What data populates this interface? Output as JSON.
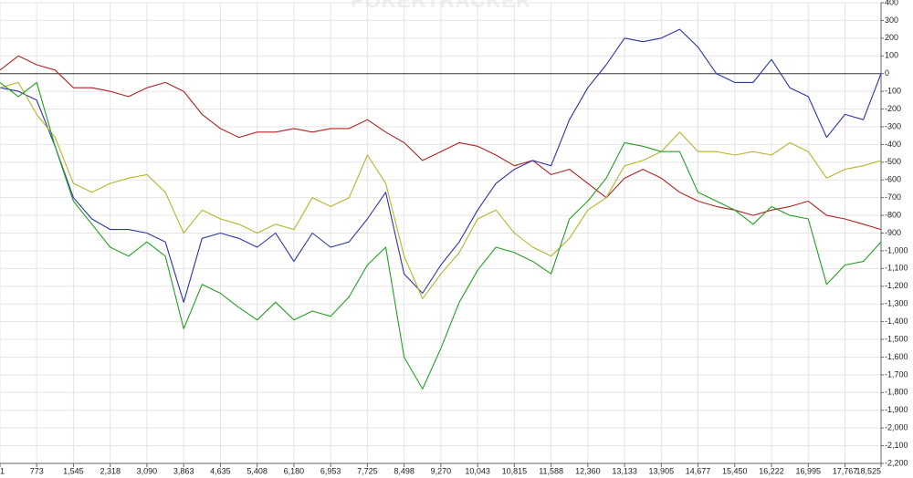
{
  "chart_data": {
    "type": "line",
    "watermark": "POKERTRACKER",
    "x": [
      1,
      386,
      773,
      1159,
      1545,
      1932,
      2318,
      2704,
      3090,
      3477,
      3863,
      4249,
      4635,
      5022,
      5408,
      5794,
      6180,
      6567,
      6953,
      7339,
      7725,
      8112,
      8498,
      8884,
      9270,
      9657,
      10043,
      10429,
      10815,
      11202,
      11588,
      11974,
      12360,
      12747,
      13133,
      13519,
      13905,
      14291,
      14677,
      15064,
      15450,
      15836,
      16222,
      16608,
      16995,
      17381,
      17767,
      18153,
      18525
    ],
    "series": [
      {
        "color": "#b22222",
        "values": [
          20,
          100,
          50,
          20,
          -80,
          -80,
          -100,
          -130,
          -80,
          -50,
          -100,
          -230,
          -310,
          -360,
          -330,
          -330,
          -310,
          -330,
          -310,
          -310,
          -260,
          -330,
          -390,
          -490,
          -440,
          -390,
          -410,
          -460,
          -520,
          -490,
          -570,
          -540,
          -620,
          -700,
          -590,
          -540,
          -590,
          -670,
          -720,
          -750,
          -770,
          -800,
          -770,
          -750,
          -720,
          -800,
          -820,
          -850,
          -880
        ]
      },
      {
        "color": "#2b35a8",
        "values": [
          -80,
          -100,
          -150,
          -410,
          -700,
          -820,
          -880,
          -880,
          -900,
          -950,
          -1290,
          -930,
          -900,
          -930,
          -980,
          -900,
          -1060,
          -900,
          -980,
          -950,
          -820,
          -670,
          -1130,
          -1240,
          -1080,
          -950,
          -770,
          -620,
          -540,
          -490,
          -520,
          -260,
          -80,
          50,
          200,
          180,
          200,
          250,
          150,
          0,
          -50,
          -50,
          80,
          -80,
          -130,
          -360,
          -230,
          -260,
          0
        ]
      },
      {
        "color": "#b5b52a",
        "values": [
          -80,
          -50,
          -230,
          -360,
          -620,
          -670,
          -620,
          -590,
          -570,
          -670,
          -900,
          -770,
          -820,
          -850,
          -900,
          -850,
          -880,
          -700,
          -750,
          -700,
          -460,
          -620,
          -1030,
          -1270,
          -1130,
          -1010,
          -820,
          -770,
          -900,
          -980,
          -1030,
          -930,
          -770,
          -700,
          -520,
          -490,
          -440,
          -330,
          -440,
          -440,
          -460,
          -440,
          -460,
          -390,
          -440,
          -590,
          -540,
          -520,
          -490
        ]
      },
      {
        "color": "#22a022",
        "values": [
          -50,
          -130,
          -50,
          -410,
          -720,
          -850,
          -980,
          -1030,
          -950,
          -1030,
          -1440,
          -1190,
          -1240,
          -1320,
          -1390,
          -1290,
          -1390,
          -1340,
          -1370,
          -1260,
          -1080,
          -980,
          -1600,
          -1780,
          -1550,
          -1290,
          -1110,
          -980,
          -1010,
          -1060,
          -1130,
          -820,
          -720,
          -590,
          -390,
          -410,
          -440,
          -440,
          -670,
          -720,
          -770,
          -850,
          -750,
          -800,
          -820,
          -1190,
          -1080,
          -1060,
          -950
        ]
      }
    ],
    "xlim": [
      1,
      18525
    ],
    "xticks": [
      1,
      773,
      {
        "value": 1545,
        "label": "1,545"
      },
      {
        "value": 2318,
        "label": "2,318"
      },
      {
        "value": 3090,
        "label": "3,090"
      },
      {
        "value": 3863,
        "label": "3,863"
      },
      {
        "value": 4635,
        "label": "4,635"
      },
      {
        "value": 5408,
        "label": "5,408"
      },
      {
        "value": 6180,
        "label": "6,180"
      },
      {
        "value": 6953,
        "label": "6,953"
      },
      {
        "value": 7725,
        "label": "7,725"
      },
      {
        "value": 8498,
        "label": "8,498"
      },
      {
        "value": 9270,
        "label": "9,270"
      },
      {
        "value": 10043,
        "label": "10,043"
      },
      {
        "value": 10815,
        "label": "10,815"
      },
      {
        "value": 11588,
        "label": "11,588"
      },
      {
        "value": 12360,
        "label": "12,360"
      },
      {
        "value": 13133,
        "label": "13,133"
      },
      {
        "value": 13905,
        "label": "13,905"
      },
      {
        "value": 14677,
        "label": "14,677"
      },
      {
        "value": 15450,
        "label": "15,450"
      },
      {
        "value": 16222,
        "label": "16,222"
      },
      {
        "value": 16995,
        "label": "16,995"
      },
      {
        "value": 17767,
        "label": "17,767"
      },
      {
        "value": 18525,
        "label": "18,525"
      }
    ],
    "ylim": [
      -2200,
      400
    ],
    "yticks": [
      400,
      300,
      200,
      100,
      0,
      -100,
      -200,
      -300,
      -400,
      -500,
      -600,
      -700,
      -800,
      -900,
      {
        "value": -1000,
        "label": "-1,000"
      },
      {
        "value": -1100,
        "label": "-1,100"
      },
      {
        "value": -1200,
        "label": "-1,200"
      },
      {
        "value": -1300,
        "label": "-1,300"
      },
      {
        "value": -1400,
        "label": "-1,400"
      },
      {
        "value": -1500,
        "label": "-1,500"
      },
      {
        "value": -1600,
        "label": "-1,600"
      },
      {
        "value": -1700,
        "label": "-1,700"
      },
      {
        "value": -1800,
        "label": "-1,800"
      },
      {
        "value": -1900,
        "label": "-1,900"
      },
      {
        "value": -2000,
        "label": "-2,000"
      },
      {
        "value": -2100,
        "label": "-2,100"
      },
      {
        "value": -2200,
        "label": "-2,200"
      }
    ],
    "grid": true
  }
}
